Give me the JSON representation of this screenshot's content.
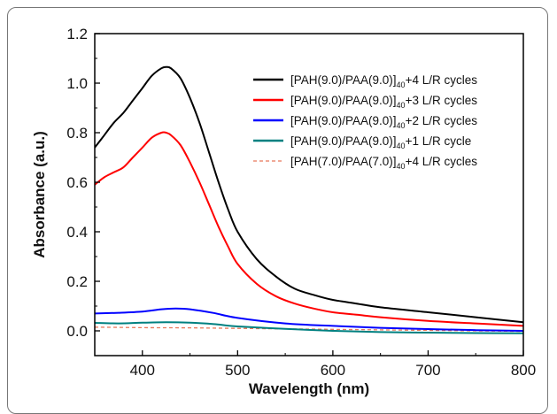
{
  "chart_data": {
    "type": "line",
    "xlabel": "Wavelength (nm)",
    "ylabel": "Absorbance (a.u.)",
    "xlim": [
      350,
      800
    ],
    "ylim": [
      -0.1,
      1.2
    ],
    "xticks": [
      400,
      500,
      600,
      700,
      800
    ],
    "yticks": [
      0.0,
      0.2,
      0.4,
      0.6,
      0.8,
      1.0,
      1.2
    ],
    "ytick_labels": [
      "0.0",
      "0.2",
      "0.4",
      "0.6",
      "0.8",
      "1.0",
      "1.2"
    ],
    "legend_position": "top-right",
    "series": [
      {
        "name": "[PAH(9.0)/PAA(9.0)]40+4 L/R cycles",
        "label_main": "[PAH(9.0)/PAA(9.0)]",
        "label_sub": "40",
        "label_tail": "+4 L/R cycles",
        "color": "#000000",
        "dashed": false,
        "x": [
          350,
          360,
          370,
          380,
          390,
          400,
          410,
          420,
          425,
          430,
          440,
          450,
          460,
          470,
          480,
          490,
          500,
          520,
          540,
          560,
          580,
          600,
          625,
          650,
          700,
          750,
          800
        ],
        "y": [
          0.74,
          0.79,
          0.84,
          0.88,
          0.93,
          0.98,
          1.03,
          1.06,
          1.065,
          1.06,
          1.02,
          0.94,
          0.84,
          0.72,
          0.6,
          0.49,
          0.4,
          0.29,
          0.22,
          0.17,
          0.145,
          0.125,
          0.11,
          0.095,
          0.075,
          0.055,
          0.035
        ]
      },
      {
        "name": "[PAH(9.0)/PAA(9.0)]40+3 L/R cycles",
        "label_main": "[PAH(9.0)/PAA(9.0)]",
        "label_sub": "40",
        "label_tail": "+3 L/R cycles",
        "color": "#ff0000",
        "dashed": false,
        "x": [
          350,
          360,
          370,
          380,
          390,
          400,
          410,
          420,
          425,
          430,
          440,
          450,
          460,
          470,
          480,
          490,
          500,
          520,
          540,
          560,
          580,
          600,
          625,
          650,
          700,
          750,
          800
        ],
        "y": [
          0.59,
          0.62,
          0.64,
          0.66,
          0.7,
          0.74,
          0.78,
          0.8,
          0.8,
          0.79,
          0.75,
          0.68,
          0.6,
          0.51,
          0.42,
          0.34,
          0.27,
          0.19,
          0.14,
          0.11,
          0.09,
          0.075,
          0.065,
          0.055,
          0.04,
          0.03,
          0.02
        ]
      },
      {
        "name": "[PAH(9.0)/PAA(9.0)]40+2 L/R cycles",
        "label_main": "[PAH(9.0)/PAA(9.0)]",
        "label_sub": "40",
        "label_tail": "+2 L/R cycles",
        "color": "#0000ff",
        "dashed": false,
        "x": [
          350,
          375,
          400,
          420,
          435,
          450,
          475,
          500,
          550,
          600,
          650,
          700,
          750,
          800
        ],
        "y": [
          0.07,
          0.073,
          0.078,
          0.087,
          0.09,
          0.087,
          0.072,
          0.052,
          0.03,
          0.02,
          0.012,
          0.007,
          0.003,
          0.0
        ]
      },
      {
        "name": "[PAH(9.0)/PAA(9.0)]40+1 L/R cycle",
        "label_main": "[PAH(9.0)/PAA(9.0)]",
        "label_sub": "40",
        "label_tail": "+1 L/R cycle",
        "color": "#008080",
        "dashed": false,
        "x": [
          350,
          375,
          400,
          425,
          450,
          475,
          500,
          550,
          600,
          650,
          700,
          750,
          800
        ],
        "y": [
          0.032,
          0.03,
          0.033,
          0.035,
          0.033,
          0.027,
          0.018,
          0.008,
          0.0,
          -0.005,
          -0.007,
          -0.009,
          -0.01
        ]
      },
      {
        "name": "[PAH(7.0)/PAA(7.0)]40+4 L/R cycles",
        "label_main": "[PAH(7.0)/PAA(7.0)]",
        "label_sub": "40",
        "label_tail": "+4 L/R cycles",
        "color": "#e8785a",
        "dashed": true,
        "x": [
          350,
          400,
          450,
          500,
          550,
          600,
          650,
          700,
          750,
          800
        ],
        "y": [
          0.015,
          0.013,
          0.012,
          0.01,
          0.008,
          0.006,
          0.004,
          0.002,
          0.0,
          -0.002
        ]
      }
    ]
  }
}
